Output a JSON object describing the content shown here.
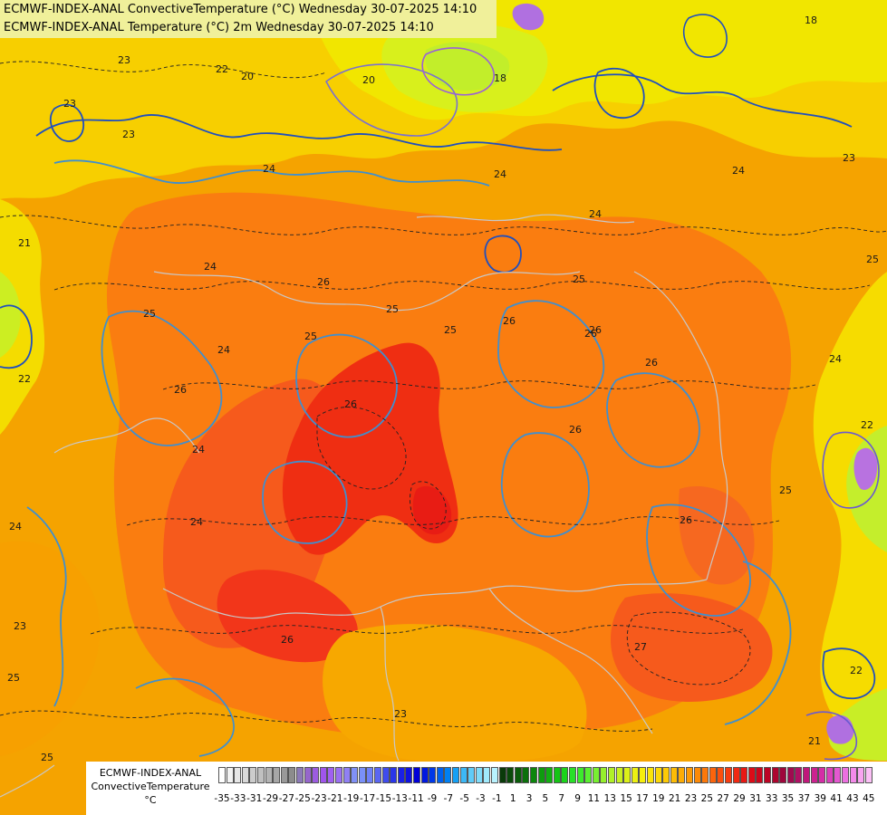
{
  "header": {
    "line1": "ECMWF-INDEX-ANAL ConvectiveTemperature (°C) Wednesday 30-07-2025 14:10",
    "line2": "ECMWF-INDEX-ANAL Temperature (°C) 2m Wednesday 30-07-2025 14:10"
  },
  "legend": {
    "title_line1": "ECMWF-INDEX-ANAL",
    "title_line2": "ConvectiveTemperature",
    "title_line3": "°C",
    "tick_labels": [
      "-35",
      "-33",
      "-31",
      "-29",
      "-27",
      "-25",
      "-23",
      "-21",
      "-19",
      "-17",
      "-15",
      "-13",
      "-11",
      "-9",
      "-7",
      "-5",
      "-3",
      "-1",
      "1",
      "3",
      "5",
      "7",
      "9",
      "11",
      "13",
      "15",
      "17",
      "19",
      "21",
      "23",
      "25",
      "27",
      "29",
      "31",
      "33",
      "35",
      "37",
      "39",
      "41",
      "43",
      "45"
    ],
    "colors": [
      "#ffffff",
      "#f2f2f2",
      "#e6e6e6",
      "#d9d9d9",
      "#cccccc",
      "#c0c0c0",
      "#b3b3b3",
      "#a6a6a6",
      "#999999",
      "#8c8c8c",
      "#8c7ab8",
      "#9666cc",
      "#9c5ce0",
      "#a055ec",
      "#a060f0",
      "#9a70f2",
      "#9080f4",
      "#8090f6",
      "#7a90f8",
      "#6f80f8",
      "#5a66f2",
      "#3f4bee",
      "#2a35ea",
      "#1a20e6",
      "#0f12e0",
      "#0000d8",
      "#0018e0",
      "#0038e8",
      "#0060ee",
      "#0080f2",
      "#16a0f4",
      "#3cb8f6",
      "#60ccf8",
      "#80dcfa",
      "#a0eafc",
      "#b8f2fe",
      "#0a3a0a",
      "#0a4a0a",
      "#0a5c0a",
      "#0b700b",
      "#0c860c",
      "#0e9c0e",
      "#10b010",
      "#14c414",
      "#1ad41a",
      "#28e028",
      "#3cea2c",
      "#5af030",
      "#78f030",
      "#96f02c",
      "#b0f028",
      "#c8f020",
      "#dcf018",
      "#ecf012",
      "#f6ee0e",
      "#fae40a",
      "#fcd808",
      "#fcca06",
      "#fcbc06",
      "#fcac06",
      "#fc9a06",
      "#fc8a08",
      "#fc780a",
      "#fc640c",
      "#fa500e",
      "#f63c10",
      "#f02812",
      "#e81814",
      "#dc0c18",
      "#cc061c",
      "#bc0424",
      "#ac042e",
      "#9e063c",
      "#a00a50",
      "#b01064",
      "#c0187a",
      "#cc2290",
      "#d42ea6",
      "#dc40bc",
      "#e458d0",
      "#ec70e0",
      "#f48aea",
      "#f8a4f0",
      "#fcc0f6"
    ],
    "map_colors": {
      "hot": "#ef2a10",
      "very_warm": "#f6581a",
      "warm": "#fa7a10",
      "orange": "#f8a300",
      "amber": "#f9c000",
      "yellow": "#f3e300",
      "yellow_green": "#c6ef1a",
      "purple": "#b070e0"
    }
  },
  "map_labels": [
    "23",
    "23",
    "23",
    "22",
    "20",
    "18",
    "20",
    "18",
    "23",
    "24",
    "24",
    "24",
    "24",
    "24",
    "24",
    "25",
    "25",
    "25",
    "25",
    "26",
    "26",
    "26",
    "26",
    "26",
    "26",
    "25",
    "26",
    "24",
    "24",
    "22",
    "21",
    "22",
    "24",
    "26",
    "25",
    "24",
    "23",
    "25",
    "22",
    "21",
    "27",
    "26",
    "25",
    "25",
    "26",
    "23"
  ]
}
